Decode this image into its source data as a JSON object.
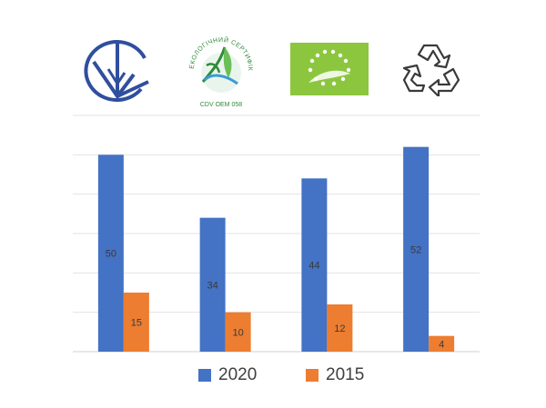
{
  "logos": [
    {
      "icon": "ukraine-quality-mark-icon"
    },
    {
      "icon": "ecological-certificate-icon",
      "ring_text": "ЕКОЛОГІЧНИЙ СЕРТИФІКАТ",
      "code": "CDV OEM 058"
    },
    {
      "icon": "eu-organic-leaf-icon"
    },
    {
      "icon": "recycling-symbol-icon"
    }
  ],
  "chart_data": {
    "type": "bar",
    "categories": [
      "",
      "",
      "",
      ""
    ],
    "series": [
      {
        "name": "2020",
        "values": [
          50,
          34,
          44,
          52
        ],
        "color": "#4472C4"
      },
      {
        "name": "2015",
        "values": [
          15,
          10,
          12,
          4
        ],
        "color": "#ED7D31"
      }
    ],
    "ylim": [
      0,
      60
    ],
    "grid": true,
    "legend": "bottom",
    "data_labels": true
  }
}
